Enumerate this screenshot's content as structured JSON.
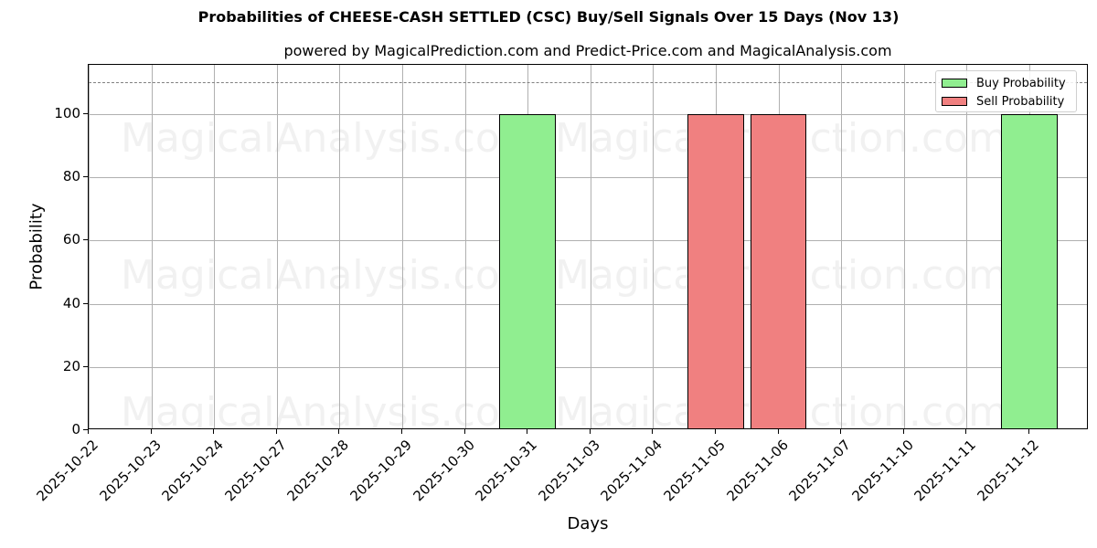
{
  "title": "Probabilities of CHEESE-CASH SETTLED (CSC) Buy/Sell Signals Over 15 Days (Nov 13)",
  "subtitle": "powered by MagicalPrediction.com and Predict-Price.com and MagicalAnalysis.com",
  "xlabel": "Days",
  "ylabel": "Probability",
  "legend": {
    "buy": "Buy Probability",
    "sell": "Sell Probability"
  },
  "colors": {
    "buy": "#90ee90",
    "sell": "#f08080",
    "grid": "#b0b0b0",
    "refline": "#808080"
  },
  "watermarks": [
    "MagicalAnalysis.com",
    "MagicalPrediction.com"
  ],
  "yticks": [
    "0",
    "20",
    "40",
    "60",
    "80",
    "100"
  ],
  "chart_data": {
    "type": "bar",
    "title": "Probabilities of CHEESE-CASH SETTLED (CSC) Buy/Sell Signals Over 15 Days (Nov 13)",
    "subtitle": "powered by MagicalPrediction.com and Predict-Price.com and MagicalAnalysis.com",
    "xlabel": "Days",
    "ylabel": "Probability",
    "categories": [
      "2025-10-22",
      "2025-10-23",
      "2025-10-24",
      "2025-10-27",
      "2025-10-28",
      "2025-10-29",
      "2025-10-30",
      "2025-10-31",
      "2025-11-03",
      "2025-11-04",
      "2025-11-05",
      "2025-11-06",
      "2025-11-07",
      "2025-11-10",
      "2025-11-11",
      "2025-11-12"
    ],
    "series": [
      {
        "name": "Buy Probability",
        "color": "#90ee90",
        "values": [
          0,
          0,
          0,
          0,
          0,
          0,
          0,
          100,
          0,
          0,
          0,
          0,
          0,
          0,
          0,
          100
        ]
      },
      {
        "name": "Sell Probability",
        "color": "#f08080",
        "values": [
          0,
          0,
          0,
          0,
          0,
          0,
          0,
          0,
          0,
          0,
          100,
          100,
          0,
          0,
          0,
          0
        ]
      }
    ],
    "ylim": [
      0,
      115.6
    ],
    "yticks": [
      0,
      20,
      40,
      60,
      80,
      100
    ],
    "reference_line": {
      "y": 110,
      "style": "dashed",
      "color": "#808080"
    },
    "grid": true,
    "legend_position": "upper right"
  }
}
